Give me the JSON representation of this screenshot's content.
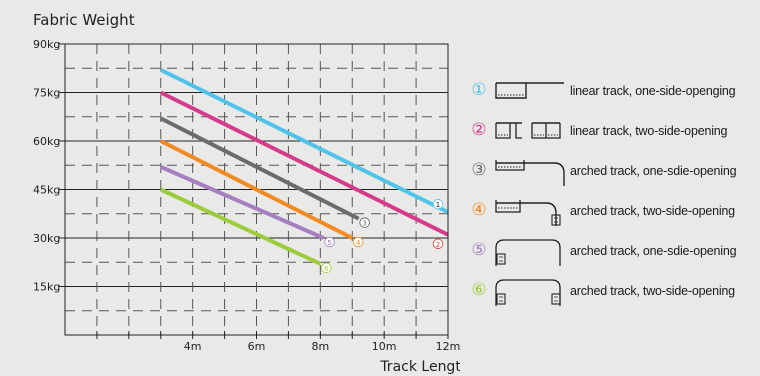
{
  "chart_data": {
    "type": "line",
    "title": "Fabric Weight",
    "xlabel": "Track Length",
    "ylabel": "",
    "xlim": [
      0,
      12
    ],
    "ylim": [
      0,
      90
    ],
    "x_ticks": [
      {
        "value": 4,
        "label": "4m"
      },
      {
        "value": 6,
        "label": "6m"
      },
      {
        "value": 8,
        "label": "8m"
      },
      {
        "value": 10,
        "label": "10m"
      },
      {
        "value": 12,
        "label": "12m"
      }
    ],
    "y_ticks": [
      {
        "value": 15,
        "label": "15kg"
      },
      {
        "value": 30,
        "label": "30kg"
      },
      {
        "value": 45,
        "label": "45kg"
      },
      {
        "value": 60,
        "label": "60kg"
      },
      {
        "value": 75,
        "label": "75kg"
      },
      {
        "value": 90,
        "label": "90kg"
      }
    ],
    "grid": "dashed",
    "series": [
      {
        "marker": "①",
        "name": "linear track, one-side-openging",
        "color": "#4fc3ea",
        "x": [
          3,
          12
        ],
        "y": [
          82,
          38
        ]
      },
      {
        "marker": "②",
        "name": "linear track, two-side-opening",
        "color": "#d63a8a",
        "x": [
          3,
          12
        ],
        "y": [
          75,
          31
        ]
      },
      {
        "marker": "③",
        "name": "arched track, one-sdie-opening",
        "color": "#6b6b6b",
        "x": [
          3,
          9.2
        ],
        "y": [
          67,
          36
        ]
      },
      {
        "marker": "④",
        "name": "arched track, two-side-opening",
        "color": "#f28a21",
        "x": [
          3,
          9
        ],
        "y": [
          60,
          30
        ]
      },
      {
        "marker": "⑤",
        "name": "arched track, one-sdie-opening",
        "color": "#a57fc2",
        "x": [
          3,
          8.1
        ],
        "y": [
          52,
          30
        ]
      },
      {
        "marker": "⑥",
        "name": "arched track, two-side-opening",
        "color": "#9ccb3b",
        "x": [
          3,
          8
        ],
        "y": [
          45,
          22
        ]
      }
    ]
  },
  "legend": {
    "items": [
      {
        "marker": "①",
        "label": "linear track, one-side-openging",
        "color": "#4fc3ea",
        "icon": "linear-one-side-icon"
      },
      {
        "marker": "②",
        "label": "linear track, two-side-opening",
        "color": "#d63a8a",
        "icon": "linear-two-side-icon"
      },
      {
        "marker": "③",
        "label": "arched track, one-sdie-opening",
        "color": "#6b6b6b",
        "icon": "arched-one-side-icon"
      },
      {
        "marker": "④",
        "label": "arched track, two-side-opening",
        "color": "#f28a21",
        "icon": "arched-two-side-icon"
      },
      {
        "marker": "⑤",
        "label": "arched track, one-sdie-opening",
        "color": "#a57fc2",
        "icon": "arched-one-side-icon"
      },
      {
        "marker": "⑥",
        "label": "arched track, two-side-opening",
        "color": "#9ccb3b",
        "icon": "arched-two-side-icon"
      }
    ]
  }
}
